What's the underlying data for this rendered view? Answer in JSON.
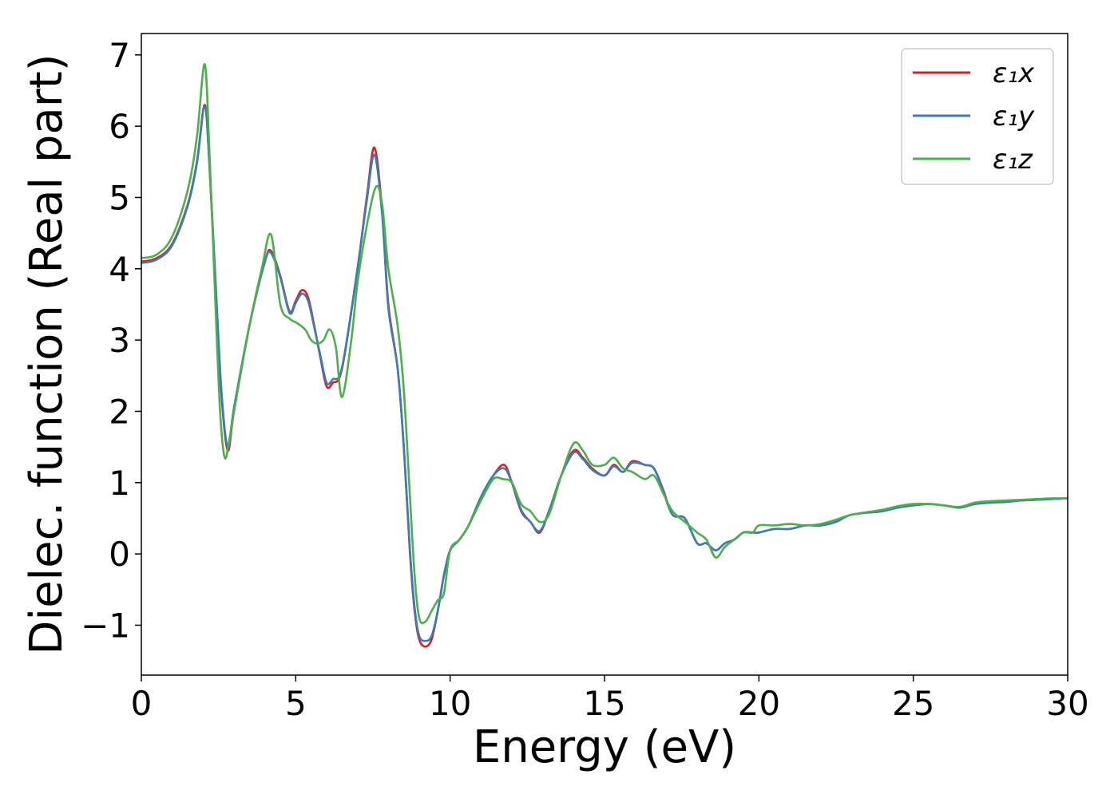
{
  "chart_data": {
    "type": "line",
    "title": "",
    "xlabel": "Energy (eV)",
    "ylabel": "Dielec. function (Real part)",
    "xlim": [
      0,
      30
    ],
    "ylim": [
      -1.7,
      7.3
    ],
    "xticks": [
      0,
      5,
      10,
      15,
      20,
      25,
      30
    ],
    "xtick_labels": [
      "0",
      "5",
      "10",
      "15",
      "20",
      "25",
      "30"
    ],
    "yticks": [
      -1,
      0,
      1,
      2,
      3,
      4,
      5,
      6,
      7
    ],
    "ytick_labels": [
      "−1",
      "0",
      "1",
      "2",
      "3",
      "4",
      "5",
      "6",
      "7"
    ],
    "grid": false,
    "legend_position": "top-right",
    "series": [
      {
        "name": "ε₁x",
        "color": "#e41a1c",
        "x": [
          0,
          0.5,
          1.0,
          1.5,
          1.8,
          2.05,
          2.2,
          2.4,
          2.6,
          2.8,
          3.0,
          3.5,
          4.0,
          4.2,
          4.5,
          4.8,
          5.0,
          5.2,
          5.4,
          5.6,
          5.8,
          6.0,
          6.2,
          6.5,
          7.0,
          7.3,
          7.55,
          7.8,
          8.0,
          8.3,
          8.5,
          8.7,
          8.85,
          9.0,
          9.2,
          9.4,
          9.6,
          9.8,
          10.0,
          10.3,
          10.6,
          11.0,
          11.4,
          11.75,
          12.0,
          12.3,
          12.6,
          12.9,
          13.2,
          13.6,
          14.0,
          14.3,
          14.6,
          15.0,
          15.3,
          15.6,
          15.9,
          16.3,
          16.6,
          16.9,
          17.2,
          17.6,
          18.0,
          18.3,
          18.6,
          18.9,
          19.2,
          19.5,
          19.8,
          20.0,
          20.5,
          21.0,
          21.5,
          22.0,
          22.5,
          23.0,
          24.0,
          24.5,
          25.0,
          25.5,
          26.0,
          26.5,
          27.0,
          27.5,
          28.0,
          28.5,
          29.0,
          29.5,
          30.0
        ],
        "values": [
          4.1,
          4.15,
          4.35,
          4.9,
          5.5,
          6.3,
          5.5,
          3.8,
          2.2,
          1.45,
          2.0,
          3.2,
          4.1,
          4.25,
          3.9,
          3.4,
          3.55,
          3.7,
          3.6,
          3.2,
          2.75,
          2.35,
          2.4,
          2.6,
          4.0,
          5.0,
          5.7,
          4.8,
          3.5,
          2.6,
          1.5,
          0.0,
          -0.8,
          -1.2,
          -1.3,
          -1.2,
          -0.8,
          -0.3,
          0.05,
          0.2,
          0.4,
          0.8,
          1.1,
          1.25,
          1.0,
          0.6,
          0.45,
          0.3,
          0.6,
          1.1,
          1.45,
          1.35,
          1.2,
          1.1,
          1.25,
          1.15,
          1.3,
          1.25,
          1.2,
          0.9,
          0.55,
          0.5,
          0.15,
          0.15,
          0.05,
          0.15,
          0.2,
          0.3,
          0.3,
          0.3,
          0.35,
          0.35,
          0.4,
          0.4,
          0.45,
          0.55,
          0.6,
          0.65,
          0.68,
          0.7,
          0.68,
          0.65,
          0.7,
          0.72,
          0.73,
          0.75,
          0.76,
          0.77,
          0.78
        ]
      },
      {
        "name": "ε₁y",
        "color": "#377eb8",
        "x": [
          0,
          0.5,
          1.0,
          1.5,
          1.8,
          2.05,
          2.2,
          2.4,
          2.6,
          2.8,
          3.0,
          3.5,
          4.0,
          4.2,
          4.5,
          4.8,
          5.0,
          5.2,
          5.4,
          5.6,
          5.8,
          6.0,
          6.2,
          6.5,
          7.0,
          7.3,
          7.55,
          7.8,
          8.0,
          8.3,
          8.5,
          8.7,
          8.85,
          9.0,
          9.2,
          9.4,
          9.6,
          9.8,
          10.0,
          10.3,
          10.6,
          11.0,
          11.4,
          11.75,
          12.0,
          12.3,
          12.6,
          12.9,
          13.2,
          13.6,
          14.0,
          14.3,
          14.6,
          15.0,
          15.3,
          15.6,
          15.9,
          16.3,
          16.6,
          16.9,
          17.2,
          17.6,
          18.0,
          18.3,
          18.6,
          18.9,
          19.2,
          19.5,
          19.8,
          20.0,
          20.5,
          21.0,
          21.5,
          22.0,
          22.5,
          23.0,
          24.0,
          24.5,
          25.0,
          25.5,
          26.0,
          26.5,
          27.0,
          27.5,
          28.0,
          28.5,
          29.0,
          29.5,
          30.0
        ],
        "values": [
          4.08,
          4.13,
          4.33,
          4.88,
          5.48,
          6.28,
          5.5,
          3.85,
          2.25,
          1.5,
          2.05,
          3.2,
          4.1,
          4.22,
          3.88,
          3.38,
          3.52,
          3.65,
          3.55,
          3.18,
          2.78,
          2.4,
          2.45,
          2.62,
          4.0,
          4.95,
          5.6,
          4.75,
          3.45,
          2.6,
          1.5,
          0.05,
          -0.75,
          -1.15,
          -1.22,
          -1.15,
          -0.8,
          -0.3,
          0.05,
          0.2,
          0.4,
          0.8,
          1.1,
          1.2,
          1.0,
          0.62,
          0.45,
          0.32,
          0.6,
          1.1,
          1.42,
          1.33,
          1.18,
          1.1,
          1.23,
          1.15,
          1.28,
          1.25,
          1.2,
          0.88,
          0.55,
          0.5,
          0.15,
          0.15,
          0.05,
          0.15,
          0.2,
          0.3,
          0.3,
          0.3,
          0.35,
          0.35,
          0.4,
          0.4,
          0.45,
          0.55,
          0.6,
          0.65,
          0.68,
          0.7,
          0.68,
          0.65,
          0.7,
          0.72,
          0.73,
          0.75,
          0.76,
          0.77,
          0.78
        ]
      },
      {
        "name": "ε₁z",
        "color": "#4daf4a",
        "x": [
          0,
          0.5,
          1.0,
          1.5,
          1.8,
          2.05,
          2.2,
          2.4,
          2.55,
          2.7,
          2.85,
          3.0,
          3.5,
          3.9,
          4.2,
          4.5,
          4.8,
          5.0,
          5.3,
          5.5,
          5.7,
          5.9,
          6.1,
          6.3,
          6.5,
          6.8,
          7.0,
          7.3,
          7.6,
          7.8,
          8.0,
          8.3,
          8.5,
          8.7,
          8.85,
          9.0,
          9.2,
          9.4,
          9.6,
          9.8,
          10.0,
          10.3,
          10.6,
          11.0,
          11.4,
          11.7,
          12.0,
          12.3,
          12.6,
          12.9,
          13.2,
          13.6,
          14.0,
          14.3,
          14.6,
          15.0,
          15.3,
          15.6,
          15.9,
          16.3,
          16.6,
          16.9,
          17.2,
          17.6,
          18.0,
          18.3,
          18.6,
          18.9,
          19.2,
          19.5,
          19.8,
          20.0,
          20.5,
          21.0,
          21.5,
          22.0,
          22.5,
          23.0,
          24.0,
          24.5,
          25.0,
          25.5,
          26.0,
          26.5,
          27.0,
          27.5,
          28.0,
          28.5,
          29.0,
          29.5,
          30.0
        ],
        "values": [
          4.15,
          4.2,
          4.45,
          5.1,
          5.85,
          6.87,
          5.7,
          3.5,
          2.0,
          1.35,
          1.6,
          2.0,
          3.2,
          4.0,
          4.48,
          3.5,
          3.3,
          3.25,
          3.15,
          3.0,
          2.95,
          3.0,
          3.15,
          2.9,
          2.2,
          3.0,
          3.8,
          4.6,
          5.15,
          4.9,
          4.0,
          3.2,
          2.3,
          0.8,
          -0.3,
          -0.9,
          -0.95,
          -0.8,
          -0.65,
          -0.55,
          0.05,
          0.2,
          0.4,
          0.75,
          1.05,
          1.05,
          1.0,
          0.7,
          0.6,
          0.45,
          0.55,
          1.1,
          1.55,
          1.45,
          1.25,
          1.25,
          1.35,
          1.2,
          1.15,
          1.05,
          1.1,
          0.85,
          0.6,
          0.45,
          0.3,
          0.2,
          -0.05,
          0.1,
          0.2,
          0.3,
          0.3,
          0.4,
          0.4,
          0.42,
          0.4,
          0.42,
          0.48,
          0.55,
          0.62,
          0.67,
          0.7,
          0.7,
          0.68,
          0.66,
          0.72,
          0.74,
          0.75,
          0.76,
          0.77,
          0.78,
          0.78
        ]
      }
    ]
  }
}
